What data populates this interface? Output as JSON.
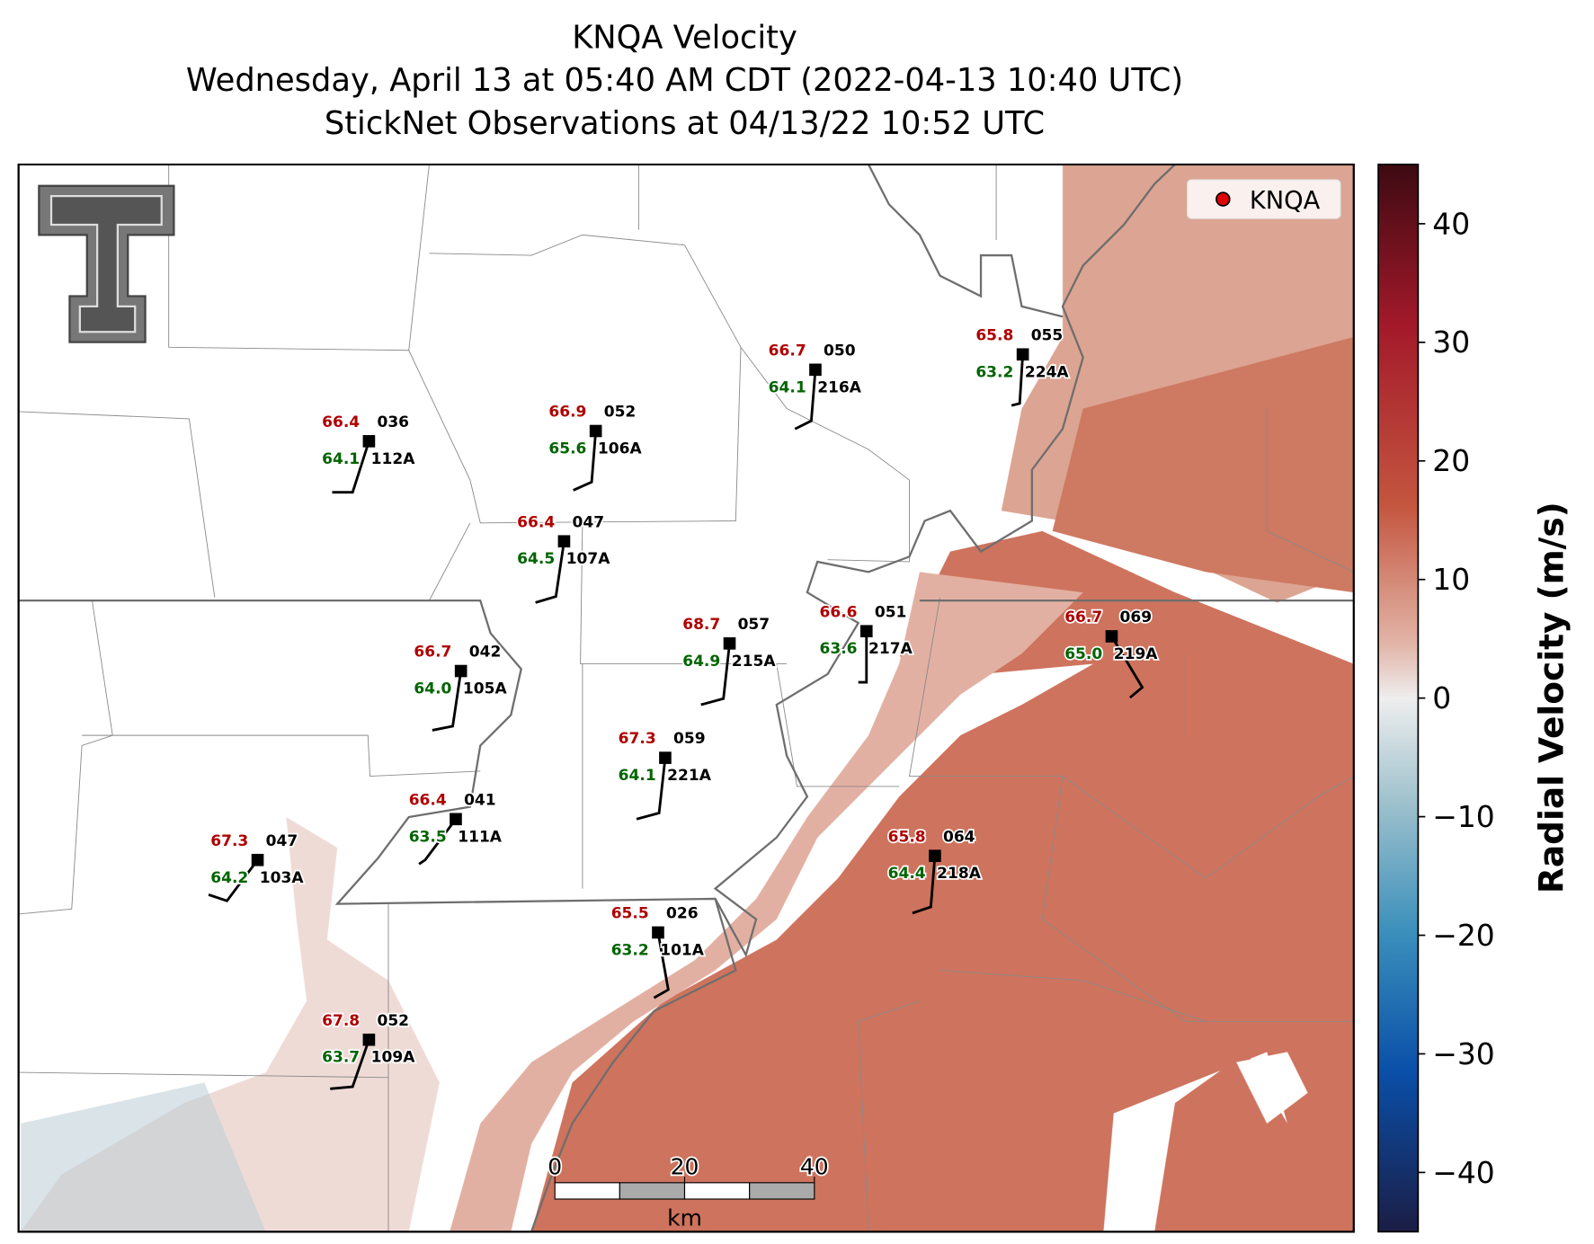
{
  "title": [
    "KNQA Velocity",
    "Wednesday, April 13 at 05:40 AM CDT (2022-04-13 10:40 UTC)",
    "StickNet Observations at 04/13/22 10:52 UTC"
  ],
  "legend": "KNQA",
  "stations": [
    {
      "temperature": "66.4",
      "dewpoint": "64.1",
      "pressure": "036",
      "name": "112A"
    },
    {
      "temperature": "66.9",
      "dewpoint": "65.6",
      "pressure": "052",
      "name": "106A"
    },
    {
      "temperature": "66.7",
      "dewpoint": "64.1",
      "pressure": "050",
      "name": "216A"
    },
    {
      "temperature": "65.8",
      "dewpoint": "63.2",
      "pressure": "055",
      "name": "224A"
    },
    {
      "temperature": "66.4",
      "dewpoint": "64.5",
      "pressure": "047",
      "name": "107A"
    },
    {
      "temperature": "66.7",
      "dewpoint": "64.0",
      "pressure": "042",
      "name": "105A"
    },
    {
      "temperature": "68.7",
      "dewpoint": "64.9",
      "pressure": "057",
      "name": "215A"
    },
    {
      "temperature": "66.6",
      "dewpoint": "63.6",
      "pressure": "051",
      "name": "217A"
    },
    {
      "temperature": "66.7",
      "dewpoint": "65.0",
      "pressure": "069",
      "name": "219A"
    },
    {
      "temperature": "67.3",
      "dewpoint": "64.1",
      "pressure": "059",
      "name": "221A"
    },
    {
      "temperature": "66.4",
      "dewpoint": "63.5",
      "pressure": "041",
      "name": "111A"
    },
    {
      "temperature": "67.3",
      "dewpoint": "64.2",
      "pressure": "047",
      "name": "103A"
    },
    {
      "temperature": "65.8",
      "dewpoint": "64.4",
      "pressure": "064",
      "name": "218A"
    },
    {
      "temperature": "65.5",
      "dewpoint": "63.2",
      "pressure": "026",
      "name": "101A"
    },
    {
      "temperature": "67.8",
      "dewpoint": "63.7",
      "pressure": "052",
      "name": "109A"
    }
  ],
  "colorbar": {
    "label": "Radial Velocity (m/s)",
    "range": [
      -45,
      45
    ],
    "ticks": [
      40,
      30,
      20,
      10,
      0,
      {
        "value": -10,
        "label": "−10"
      },
      {
        "value": -20,
        "label": "−20"
      },
      {
        "value": -30,
        "label": "−30"
      },
      {
        "value": -40,
        "label": "−40"
      }
    ]
  },
  "scale_bar": {
    "ticks": [
      0,
      20,
      40
    ],
    "unit": "km"
  }
}
